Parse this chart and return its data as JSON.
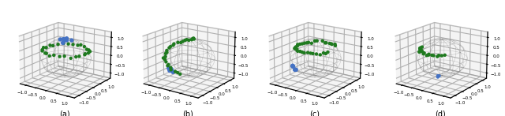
{
  "fig_width": 6.4,
  "fig_height": 1.47,
  "dpi": 100,
  "background_color": "#ffffff",
  "subplots": [
    "(a)",
    "(b)",
    "(c)",
    "(d)"
  ],
  "green_color": "#1f7a1f",
  "blue_color": "#4472c4",
  "tick_vals": [
    -1.0,
    -0.5,
    0.0,
    0.5,
    1.0
  ],
  "tick_fontsize": 4,
  "dot_size": 10,
  "blue_dot_size": 15,
  "subplot_label_fontsize": 7,
  "elev": 20,
  "azim": -50,
  "pane_color": [
    0.92,
    0.92,
    0.92,
    0.5
  ]
}
